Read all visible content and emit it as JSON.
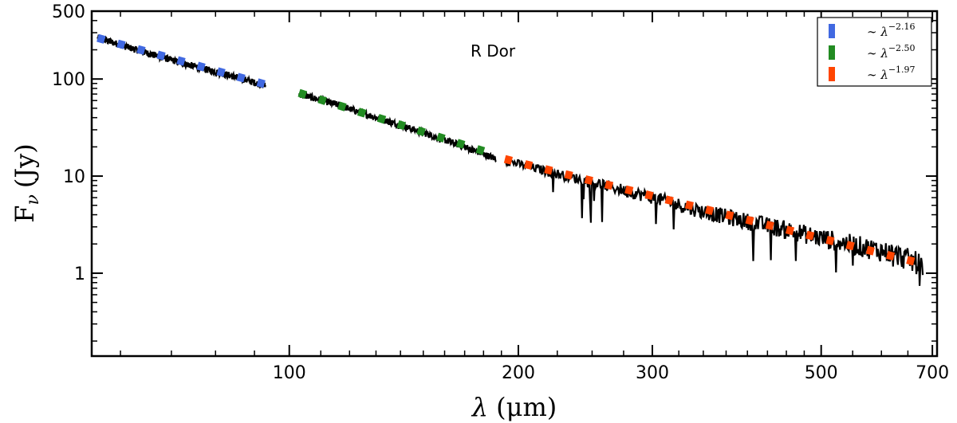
{
  "chart_data": {
    "type": "line",
    "title": "",
    "annotation": "R Dor",
    "xlabel_symbol": "λ",
    "xlabel_unit": "(μm)",
    "xlabel": "λ (μm)",
    "ylabel_main": "F",
    "ylabel_sub": "ν",
    "ylabel_unit": "(Jy)",
    "ylabel": "Fν (Jy)",
    "xscale": "log",
    "yscale": "log",
    "xlim": [
      55,
      710
    ],
    "ylim": [
      0.14,
      500
    ],
    "x_ticks": [
      {
        "value": 100,
        "label": "100"
      },
      {
        "value": 200,
        "label": "200"
      },
      {
        "value": 300,
        "label": "300"
      },
      {
        "value": 500,
        "label": "500"
      },
      {
        "value": 700,
        "label": "700"
      }
    ],
    "y_ticks": [
      {
        "value": 1,
        "label": "1"
      },
      {
        "value": 10,
        "label": "10"
      },
      {
        "value": 100,
        "label": "100"
      },
      {
        "value": 500,
        "label": "500"
      }
    ],
    "legend_position": "top-right",
    "spectrum": {
      "name": "observed spectrum",
      "color": "#000000",
      "segments": [
        {
          "x": [
            56,
            65,
            75,
            85,
            93
          ],
          "y": [
            265,
            185,
            135,
            105,
            85
          ]
        },
        {
          "x": [
            103,
            115,
            130,
            150,
            170,
            187
          ],
          "y": [
            70,
            55,
            40,
            28,
            20,
            15
          ]
        },
        {
          "x": [
            192,
            220,
            260,
            300,
            350,
            400,
            450,
            500,
            560,
            620,
            680
          ],
          "y": [
            14.5,
            11,
            8,
            6,
            4.3,
            3.4,
            2.8,
            2.3,
            1.9,
            1.6,
            1.2
          ]
        }
      ]
    },
    "series": [
      {
        "name": "~λ^-2.16",
        "legend_base": "∼ λ",
        "legend_exponent": "−2.16",
        "color": "#4169e1",
        "exponent": -2.16,
        "x": [
          56,
          93
        ],
        "y": [
          265,
          88
        ]
      },
      {
        "name": "~λ^-2.50",
        "legend_base": "∼ λ",
        "legend_exponent": "−2.50",
        "color": "#228b22",
        "exponent": -2.5,
        "x": [
          103,
          187
        ],
        "y": [
          72,
          16.5
        ]
      },
      {
        "name": "~λ^-1.97",
        "legend_base": "∼ λ",
        "legend_exponent": "−1.97",
        "color": "#ff4500",
        "exponent": -1.97,
        "x": [
          192,
          680
        ],
        "y": [
          15,
          1.25
        ]
      }
    ]
  }
}
